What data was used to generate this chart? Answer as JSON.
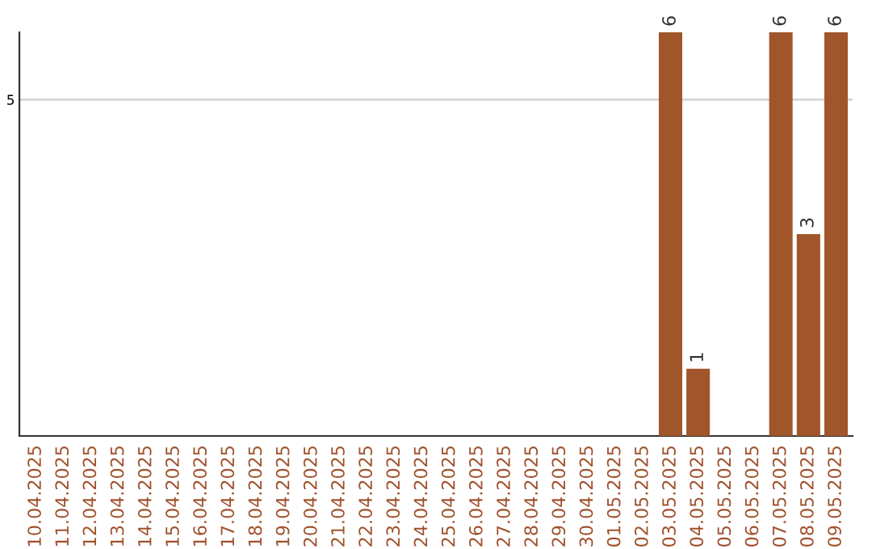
{
  "chart_data": {
    "type": "bar",
    "categories": [
      "10.04.2025",
      "11.04.2025",
      "12.04.2025",
      "13.04.2025",
      "14.04.2025",
      "15.04.2025",
      "16.04.2025",
      "17.04.2025",
      "18.04.2025",
      "19.04.2025",
      "20.04.2025",
      "21.04.2025",
      "22.04.2025",
      "23.04.2025",
      "24.04.2025",
      "25.04.2025",
      "26.04.2025",
      "27.04.2025",
      "28.04.2025",
      "29.04.2025",
      "30.04.2025",
      "01.05.2025",
      "02.05.2025",
      "03.05.2025",
      "04.05.2025",
      "05.05.2025",
      "06.05.2025",
      "07.05.2025",
      "08.05.2025",
      "09.05.2025"
    ],
    "values": [
      null,
      null,
      null,
      null,
      null,
      null,
      null,
      null,
      null,
      null,
      null,
      null,
      null,
      null,
      null,
      null,
      null,
      null,
      null,
      null,
      null,
      null,
      null,
      6,
      1,
      null,
      null,
      6,
      3,
      6
    ],
    "data_labels": true,
    "color": "#a0562a",
    "ylim": [
      0,
      6
    ],
    "yticks": [
      5
    ],
    "grid": "y"
  }
}
